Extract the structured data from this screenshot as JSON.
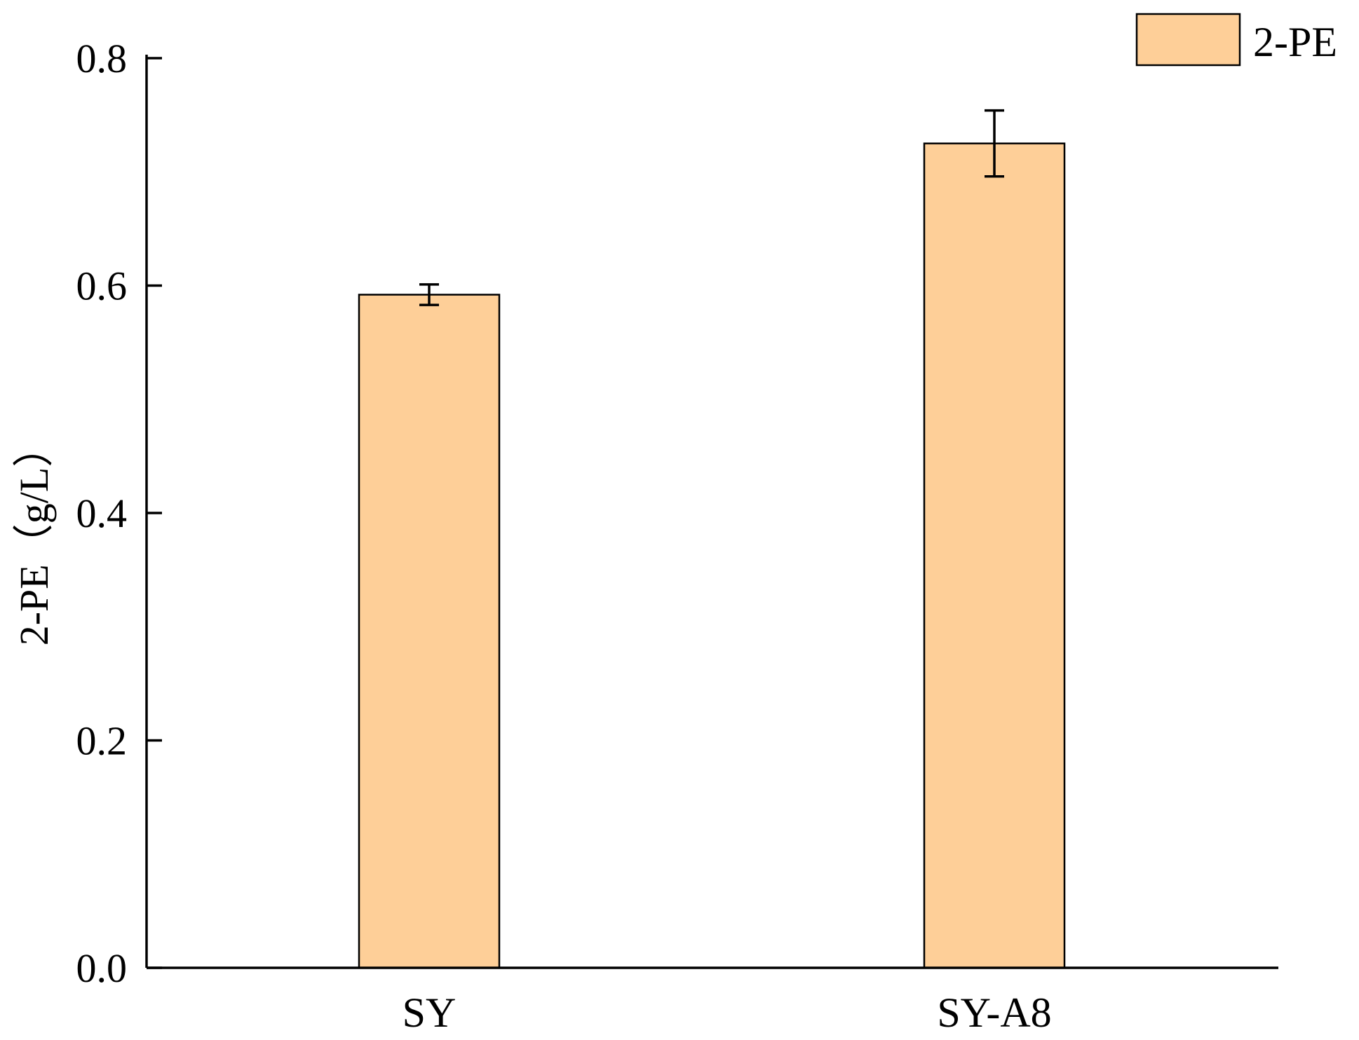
{
  "colors": {
    "bar_fill": "#FECF98",
    "bar_stroke": "#000000",
    "axis": "#000000"
  },
  "chart_data": {
    "type": "bar",
    "categories": [
      "SY",
      "SY-A8"
    ],
    "series": [
      {
        "name": "2-PE",
        "values": [
          0.592,
          0.725
        ],
        "error": [
          0.009,
          0.029
        ]
      }
    ],
    "ylabel": "2-PE（g/L）",
    "xlabel": "",
    "ylim": [
      0.0,
      0.8
    ],
    "yticks": [
      0.0,
      0.2,
      0.4,
      0.6,
      0.8
    ],
    "ytick_labels": [
      "0.0",
      "0.2",
      "0.4",
      "0.6",
      "0.8"
    ],
    "grid": false,
    "legend_position": "top-right"
  }
}
